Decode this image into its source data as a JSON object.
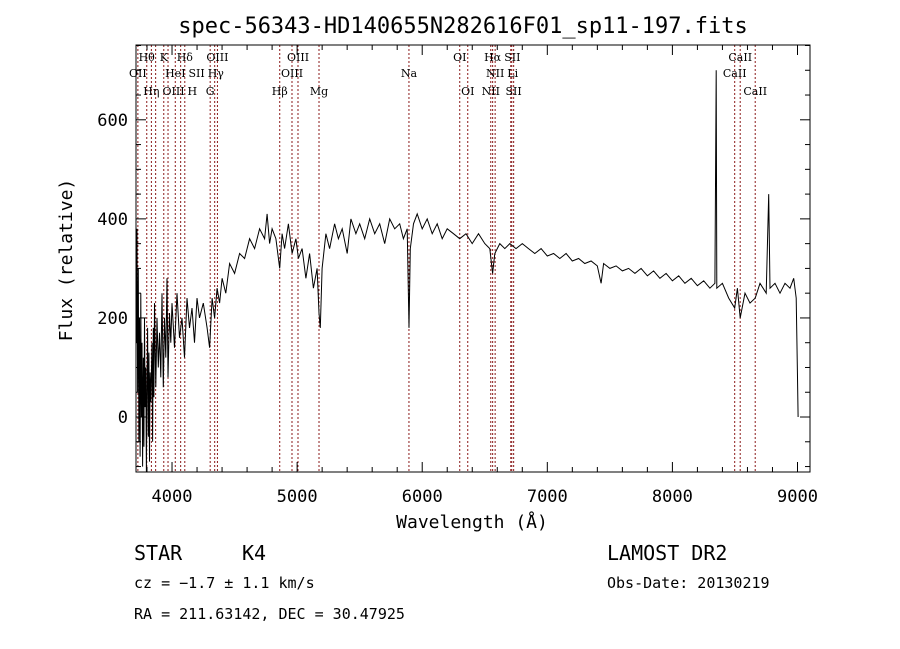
{
  "chart_data": {
    "type": "line",
    "title": "spec-56343-HD140655N282616F01_sp11-197.fits",
    "xlabel": "Wavelength (Å)",
    "ylabel": "Flux (relative)",
    "xlim": [
      3712,
      9100
    ],
    "ylim": [
      -111,
      751
    ],
    "xticks": [
      4000,
      5000,
      6000,
      7000,
      8000,
      9000
    ],
    "yticks": [
      0,
      200,
      400,
      600
    ],
    "grid": false,
    "line_color": "#000000",
    "marker_color": "#8b1a1a",
    "lines": [
      {
        "label": "Hθ",
        "wave": 3798,
        "row": 0
      },
      {
        "label": "K",
        "wave": 3934,
        "row": 0
      },
      {
        "label": "Hδ",
        "wave": 4102,
        "row": 0
      },
      {
        "label": "OIII",
        "wave": 4363,
        "row": 0
      },
      {
        "label": "OIII",
        "wave": 5007,
        "row": 0
      },
      {
        "label": "OI",
        "wave": 6300,
        "row": 0
      },
      {
        "label": "Hα",
        "wave": 6563,
        "row": 0
      },
      {
        "label": "SII",
        "wave": 6716,
        "row": 0
      },
      {
        "label": "CaII",
        "wave": 8542,
        "row": 0
      },
      {
        "label": "OII",
        "wave": 3727,
        "row": 1
      },
      {
        "label": "HeI",
        "wave": 4026,
        "row": 1
      },
      {
        "label": "SII",
        "wave": 4069,
        "row": 1
      },
      {
        "label": "Hγ",
        "wave": 4341,
        "row": 1
      },
      {
        "label": "OIII",
        "wave": 4959,
        "row": 1
      },
      {
        "label": "Na",
        "wave": 5894,
        "row": 1
      },
      {
        "label": "NII",
        "wave": 6583,
        "row": 1
      },
      {
        "label": "Li",
        "wave": 6708,
        "row": 1
      },
      {
        "label": "CaII",
        "wave": 8498,
        "row": 1
      },
      {
        "label": "OIII",
        "wave": 3869,
        "row": 2
      },
      {
        "label": "Hη",
        "wave": 3835,
        "row": 2
      },
      {
        "label": "H",
        "wave": 3968,
        "row": 2
      },
      {
        "label": "G",
        "wave": 4305,
        "row": 2
      },
      {
        "label": "Hβ",
        "wave": 4861,
        "row": 2
      },
      {
        "label": "Mg",
        "wave": 5175,
        "row": 2
      },
      {
        "label": "OI",
        "wave": 6364,
        "row": 2
      },
      {
        "label": "NII",
        "wave": 6548,
        "row": 2
      },
      {
        "label": "SII",
        "wave": 6731,
        "row": 2
      },
      {
        "label": "CaII",
        "wave": 8662,
        "row": 2
      }
    ],
    "series": [
      {
        "name": "flux",
        "points": [
          [
            3715,
            150
          ],
          [
            3720,
            380
          ],
          [
            3725,
            50
          ],
          [
            3730,
            300
          ],
          [
            3735,
            -50
          ],
          [
            3740,
            200
          ],
          [
            3745,
            -80
          ],
          [
            3750,
            250
          ],
          [
            3755,
            0
          ],
          [
            3760,
            150
          ],
          [
            3765,
            -100
          ],
          [
            3770,
            120
          ],
          [
            3775,
            -60
          ],
          [
            3780,
            200
          ],
          [
            3785,
            20
          ],
          [
            3790,
            100
          ],
          [
            3795,
            -110
          ],
          [
            3800,
            60
          ],
          [
            3805,
            180
          ],
          [
            3810,
            -40
          ],
          [
            3815,
            130
          ],
          [
            3820,
            -90
          ],
          [
            3825,
            90
          ],
          [
            3830,
            30
          ],
          [
            3840,
            150
          ],
          [
            3845,
            -50
          ],
          [
            3850,
            180
          ],
          [
            3855,
            40
          ],
          [
            3860,
            230
          ],
          [
            3870,
            60
          ],
          [
            3880,
            200
          ],
          [
            3890,
            100
          ],
          [
            3900,
            170
          ],
          [
            3910,
            80
          ],
          [
            3920,
            250
          ],
          [
            3930,
            60
          ],
          [
            3940,
            200
          ],
          [
            3950,
            120
          ],
          [
            3960,
            280
          ],
          [
            3968,
            80
          ],
          [
            3980,
            210
          ],
          [
            3990,
            150
          ],
          [
            4000,
            230
          ],
          [
            4020,
            140
          ],
          [
            4040,
            250
          ],
          [
            4060,
            160
          ],
          [
            4080,
            200
          ],
          [
            4100,
            120
          ],
          [
            4120,
            240
          ],
          [
            4140,
            180
          ],
          [
            4160,
            220
          ],
          [
            4180,
            150
          ],
          [
            4200,
            240
          ],
          [
            4220,
            200
          ],
          [
            4250,
            230
          ],
          [
            4280,
            180
          ],
          [
            4300,
            140
          ],
          [
            4320,
            240
          ],
          [
            4340,
            200
          ],
          [
            4360,
            260
          ],
          [
            4380,
            230
          ],
          [
            4400,
            280
          ],
          [
            4430,
            250
          ],
          [
            4460,
            310
          ],
          [
            4500,
            290
          ],
          [
            4540,
            330
          ],
          [
            4580,
            320
          ],
          [
            4620,
            360
          ],
          [
            4660,
            340
          ],
          [
            4700,
            380
          ],
          [
            4740,
            360
          ],
          [
            4760,
            410
          ],
          [
            4780,
            350
          ],
          [
            4800,
            380
          ],
          [
            4830,
            360
          ],
          [
            4861,
            300
          ],
          [
            4880,
            370
          ],
          [
            4900,
            340
          ],
          [
            4930,
            390
          ],
          [
            4960,
            330
          ],
          [
            4990,
            360
          ],
          [
            5010,
            320
          ],
          [
            5040,
            340
          ],
          [
            5070,
            280
          ],
          [
            5100,
            330
          ],
          [
            5130,
            260
          ],
          [
            5160,
            300
          ],
          [
            5175,
            210
          ],
          [
            5185,
            180
          ],
          [
            5200,
            300
          ],
          [
            5230,
            370
          ],
          [
            5260,
            340
          ],
          [
            5300,
            390
          ],
          [
            5330,
            360
          ],
          [
            5360,
            380
          ],
          [
            5400,
            330
          ],
          [
            5430,
            400
          ],
          [
            5470,
            370
          ],
          [
            5500,
            390
          ],
          [
            5540,
            360
          ],
          [
            5580,
            400
          ],
          [
            5620,
            370
          ],
          [
            5660,
            390
          ],
          [
            5700,
            350
          ],
          [
            5740,
            400
          ],
          [
            5780,
            380
          ],
          [
            5820,
            390
          ],
          [
            5850,
            360
          ],
          [
            5880,
            380
          ],
          [
            5894,
            180
          ],
          [
            5905,
            340
          ],
          [
            5930,
            390
          ],
          [
            5960,
            410
          ],
          [
            6000,
            380
          ],
          [
            6040,
            400
          ],
          [
            6080,
            370
          ],
          [
            6120,
            390
          ],
          [
            6160,
            360
          ],
          [
            6200,
            380
          ],
          [
            6250,
            370
          ],
          [
            6300,
            360
          ],
          [
            6350,
            370
          ],
          [
            6400,
            350
          ],
          [
            6450,
            370
          ],
          [
            6500,
            350
          ],
          [
            6540,
            340
          ],
          [
            6563,
            290
          ],
          [
            6580,
            330
          ],
          [
            6620,
            350
          ],
          [
            6660,
            340
          ],
          [
            6700,
            350
          ],
          [
            6750,
            340
          ],
          [
            6800,
            350
          ],
          [
            6850,
            340
          ],
          [
            6900,
            330
          ],
          [
            6950,
            340
          ],
          [
            7000,
            325
          ],
          [
            7050,
            330
          ],
          [
            7100,
            320
          ],
          [
            7150,
            330
          ],
          [
            7200,
            315
          ],
          [
            7250,
            320
          ],
          [
            7300,
            310
          ],
          [
            7350,
            315
          ],
          [
            7400,
            305
          ],
          [
            7430,
            270
          ],
          [
            7450,
            310
          ],
          [
            7500,
            300
          ],
          [
            7550,
            305
          ],
          [
            7600,
            295
          ],
          [
            7650,
            300
          ],
          [
            7700,
            290
          ],
          [
            7750,
            300
          ],
          [
            7800,
            285
          ],
          [
            7850,
            295
          ],
          [
            7900,
            280
          ],
          [
            7950,
            290
          ],
          [
            8000,
            275
          ],
          [
            8050,
            285
          ],
          [
            8100,
            270
          ],
          [
            8150,
            280
          ],
          [
            8200,
            265
          ],
          [
            8250,
            275
          ],
          [
            8300,
            260
          ],
          [
            8340,
            270
          ],
          [
            8350,
            700
          ],
          [
            8355,
            260
          ],
          [
            8400,
            270
          ],
          [
            8450,
            240
          ],
          [
            8498,
            220
          ],
          [
            8520,
            260
          ],
          [
            8542,
            200
          ],
          [
            8580,
            250
          ],
          [
            8620,
            230
          ],
          [
            8662,
            240
          ],
          [
            8700,
            270
          ],
          [
            8750,
            250
          ],
          [
            8770,
            450
          ],
          [
            8780,
            260
          ],
          [
            8820,
            270
          ],
          [
            8860,
            250
          ],
          [
            8900,
            270
          ],
          [
            8940,
            260
          ],
          [
            8970,
            280
          ],
          [
            8990,
            240
          ],
          [
            9000,
            80
          ],
          [
            9005,
            0
          ]
        ]
      }
    ]
  },
  "info": {
    "class": "STAR",
    "subclass": "K4",
    "cz": "cz = −1.7 ± 1.1 km/s",
    "coords": "RA = 211.63142, DEC =  30.47925",
    "survey": "LAMOST DR2",
    "obs_date": "Obs-Date: 20130219"
  }
}
